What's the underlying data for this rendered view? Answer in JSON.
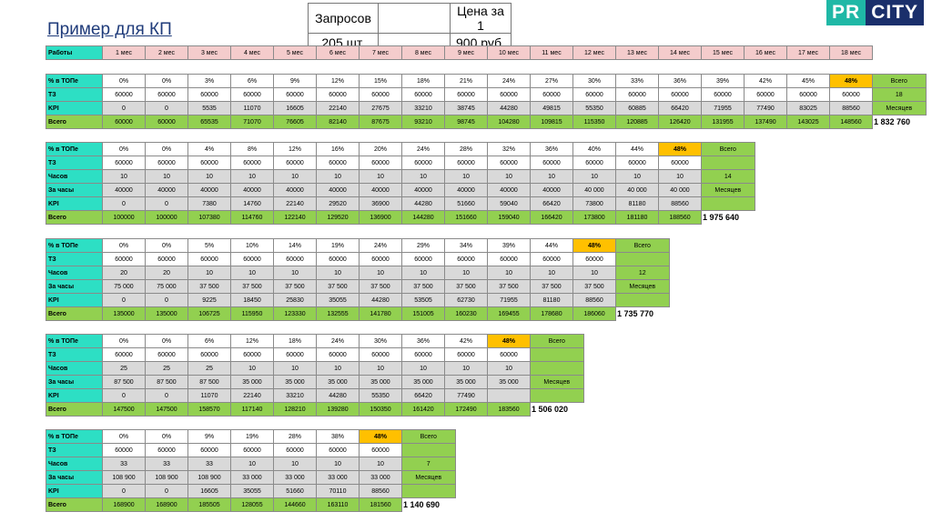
{
  "title": "Пример для КП",
  "header": {
    "requests_label": "Запросов",
    "requests_value": "205 шт.",
    "price_label": "Цена за 1",
    "price_value": "900 руб."
  },
  "logo": {
    "left": "PR",
    "right": "CITY"
  },
  "works_label": "Работы",
  "months": [
    "1 мес",
    "2 мес",
    "3 мес",
    "4 мес",
    "5 мес",
    "6 мес",
    "7 мес",
    "8 мес",
    "9 мес",
    "10 мес",
    "11 мес",
    "12 мес",
    "13 мес",
    "14 мес",
    "15 мес",
    "16 мес",
    "17 мес",
    "18 мес"
  ],
  "labels": {
    "pct": "% в ТОПе",
    "tz": "ТЗ",
    "kpi": "KPI",
    "total": "Всего",
    "hours": "Часов",
    "fee": "За часы",
    "sum": "Всего",
    "months_word": "Месяцев"
  },
  "blocks": [
    {
      "pct": [
        "0%",
        "0%",
        "3%",
        "6%",
        "9%",
        "12%",
        "15%",
        "18%",
        "21%",
        "24%",
        "27%",
        "30%",
        "33%",
        "36%",
        "39%",
        "42%",
        "45%",
        "48%"
      ],
      "tz": [
        "60000",
        "60000",
        "60000",
        "60000",
        "60000",
        "60000",
        "60000",
        "60000",
        "60000",
        "60000",
        "60000",
        "60000",
        "60000",
        "60000",
        "60000",
        "60000",
        "60000",
        "60000"
      ],
      "kpi": [
        "0",
        "0",
        "5535",
        "11070",
        "16605",
        "22140",
        "27675",
        "33210",
        "38745",
        "44280",
        "49815",
        "55350",
        "60885",
        "66420",
        "71955",
        "77490",
        "83025",
        "88560"
      ],
      "total": [
        "60000",
        "60000",
        "65535",
        "71070",
        "76605",
        "82140",
        "87675",
        "93210",
        "98745",
        "104280",
        "109815",
        "115350",
        "120885",
        "126420",
        "131955",
        "137490",
        "143025",
        "148560"
      ],
      "months_count": "18",
      "grand_total": "1 832 760"
    },
    {
      "pct": [
        "0%",
        "0%",
        "4%",
        "8%",
        "12%",
        "16%",
        "20%",
        "24%",
        "28%",
        "32%",
        "36%",
        "40%",
        "44%",
        "48%"
      ],
      "tz": [
        "60000",
        "60000",
        "60000",
        "60000",
        "60000",
        "60000",
        "60000",
        "60000",
        "60000",
        "60000",
        "60000",
        "60000",
        "60000",
        "60000"
      ],
      "hours": [
        "10",
        "10",
        "10",
        "10",
        "10",
        "10",
        "10",
        "10",
        "10",
        "10",
        "10",
        "10",
        "10",
        "10"
      ],
      "fee": [
        "40000",
        "40000",
        "40000",
        "40000",
        "40000",
        "40000",
        "40000",
        "40000",
        "40000",
        "40000",
        "40000",
        "40 000",
        "40 000",
        "40 000"
      ],
      "kpi": [
        "0",
        "0",
        "7380",
        "14760",
        "22140",
        "29520",
        "36900",
        "44280",
        "51660",
        "59040",
        "66420",
        "73800",
        "81180",
        "88560"
      ],
      "total": [
        "100000",
        "100000",
        "107380",
        "114760",
        "122140",
        "129520",
        "136900",
        "144280",
        "151660",
        "159040",
        "166420",
        "173800",
        "181180",
        "188560"
      ],
      "months_count": "14",
      "grand_total": "1 975 640"
    },
    {
      "pct": [
        "0%",
        "0%",
        "5%",
        "10%",
        "14%",
        "19%",
        "24%",
        "29%",
        "34%",
        "39%",
        "44%",
        "48%"
      ],
      "tz": [
        "60000",
        "60000",
        "60000",
        "60000",
        "60000",
        "60000",
        "60000",
        "60000",
        "60000",
        "60000",
        "60000",
        "60000"
      ],
      "hours": [
        "20",
        "20",
        "10",
        "10",
        "10",
        "10",
        "10",
        "10",
        "10",
        "10",
        "10",
        "10"
      ],
      "fee": [
        "75 000",
        "75 000",
        "37 500",
        "37 500",
        "37 500",
        "37 500",
        "37 500",
        "37 500",
        "37 500",
        "37 500",
        "37 500",
        "37 500"
      ],
      "kpi": [
        "0",
        "0",
        "9225",
        "18450",
        "25830",
        "35055",
        "44280",
        "53505",
        "62730",
        "71955",
        "81180",
        "88560"
      ],
      "total": [
        "135000",
        "135000",
        "106725",
        "115950",
        "123330",
        "132555",
        "141780",
        "151005",
        "160230",
        "169455",
        "178680",
        "186060"
      ],
      "months_count": "12",
      "grand_total": "1 735 770"
    },
    {
      "pct": [
        "0%",
        "0%",
        "6%",
        "12%",
        "18%",
        "24%",
        "30%",
        "36%",
        "42%",
        "48%"
      ],
      "tz": [
        "60000",
        "60000",
        "60000",
        "60000",
        "60000",
        "60000",
        "60000",
        "60000",
        "60000",
        "60000"
      ],
      "hours": [
        "25",
        "25",
        "25",
        "10",
        "10",
        "10",
        "10",
        "10",
        "10",
        "10"
      ],
      "fee": [
        "87 500",
        "87 500",
        "87 500",
        "35 000",
        "35 000",
        "35 000",
        "35 000",
        "35 000",
        "35 000",
        "35 000"
      ],
      "kpi": [
        "0",
        "0",
        "11070",
        "22140",
        "33210",
        "44280",
        "55350",
        "66420",
        "77490",
        ""
      ],
      "total": [
        "147500",
        "147500",
        "158570",
        "117140",
        "128210",
        "139280",
        "150350",
        "161420",
        "172490",
        "183560"
      ],
      "months_count": "",
      "grand_total": "1 506 020"
    },
    {
      "pct": [
        "0%",
        "0%",
        "9%",
        "19%",
        "28%",
        "38%",
        "48%"
      ],
      "tz": [
        "60000",
        "60000",
        "60000",
        "60000",
        "60000",
        "60000",
        "60000"
      ],
      "hours": [
        "33",
        "33",
        "33",
        "10",
        "10",
        "10",
        "10"
      ],
      "fee": [
        "108 900",
        "108 900",
        "108 900",
        "33 000",
        "33 000",
        "33 000",
        "33 000"
      ],
      "kpi": [
        "0",
        "0",
        "16605",
        "35055",
        "51660",
        "70110",
        "88560"
      ],
      "total": [
        "168900",
        "168900",
        "185505",
        "128055",
        "144660",
        "163110",
        "181560"
      ],
      "months_count": "7",
      "grand_total": "1 140 690"
    }
  ]
}
